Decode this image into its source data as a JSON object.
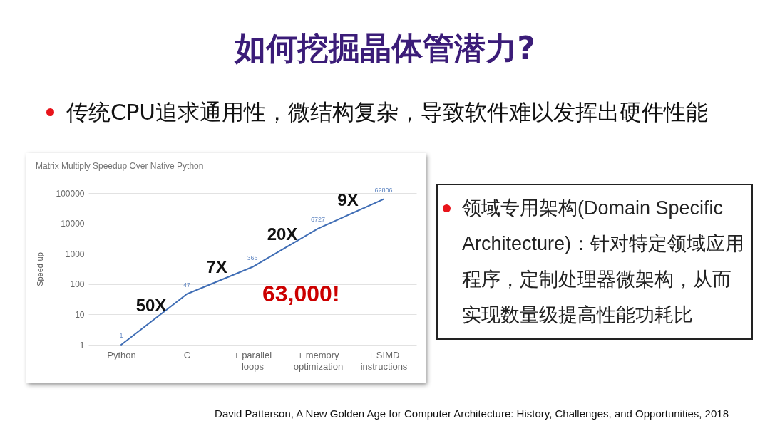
{
  "chart_data": {
    "type": "line",
    "title": "如何挖掘晶体管潜力?",
    "subtitle": "传统CPU追求通用性，微结构复杂，导致软件难以发挥出硬件性能",
    "ylabel": "Speed-up",
    "categories": [
      "Python",
      "C",
      "+ parallel loops",
      "+ memory optimization",
      "+ SIMD instructions"
    ],
    "series": [
      {
        "color": "#3f6db5",
        "values": [
          1,
          47,
          366,
          6727,
          62806
        ]
      }
    ],
    "log": true,
    "ylim": [
      1,
      100000
    ],
    "yticks": [
      1,
      10,
      100,
      1000,
      10000,
      100000
    ],
    "grid": "y",
    "data_labels": true,
    "annotations": [
      "Matrix Multiply Speedup Over Native Python",
      "领域专用架构(Domain Specific Architecture)：针对特定领域应用程序，定制处理器微架构，从而实现数量级提高性能功耗比",
      "David Patterson, A New Golden Age for Computer Architecture: History, Challenges, and Opportunities, 2018",
      "63,000!",
      "50X",
      "7X",
      "20X",
      "9X"
    ]
  }
}
